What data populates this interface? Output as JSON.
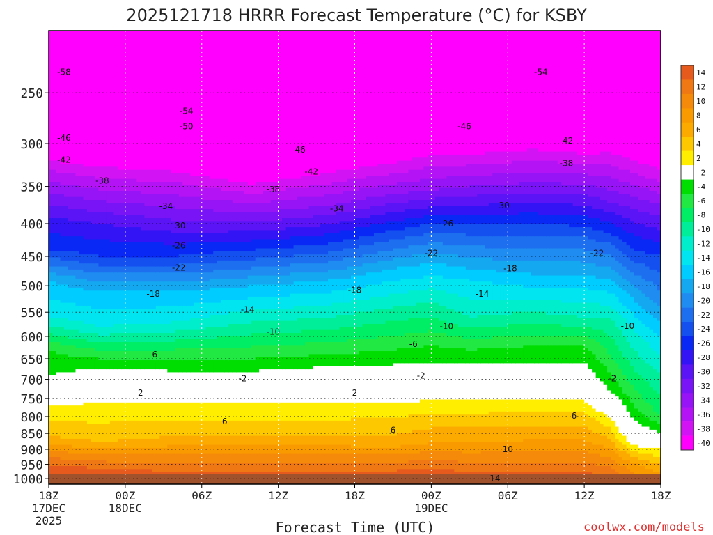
{
  "chart_data": {
    "type": "heatmap",
    "title": "2025121718 HRRR Forecast Temperature (°C) for KSBY",
    "xlabel": "Forecast Time (UTC)",
    "ylabel": "",
    "credit": "coolwx.com/models",
    "x_hours": [
      0,
      48
    ],
    "x_ticks": [
      {
        "hour": 0,
        "lines": [
          "18Z",
          "17DEC",
          "2025"
        ]
      },
      {
        "hour": 6,
        "lines": [
          "00Z",
          "18DEC"
        ]
      },
      {
        "hour": 12,
        "lines": [
          "06Z"
        ]
      },
      {
        "hour": 18,
        "lines": [
          "12Z"
        ]
      },
      {
        "hour": 24,
        "lines": [
          "18Z"
        ]
      },
      {
        "hour": 30,
        "lines": [
          "00Z",
          "19DEC"
        ]
      },
      {
        "hour": 36,
        "lines": [
          "06Z"
        ]
      },
      {
        "hour": 42,
        "lines": [
          "12Z"
        ]
      },
      {
        "hour": 48,
        "lines": [
          "18Z"
        ]
      }
    ],
    "y_ticks": [
      250,
      300,
      350,
      400,
      450,
      500,
      550,
      600,
      650,
      700,
      750,
      800,
      850,
      900,
      950,
      1000
    ],
    "y_range_hpa": [
      1020,
      200
    ],
    "colorbar": {
      "labels": [
        "14",
        "12",
        "10",
        "8",
        "6",
        "4",
        "2",
        "-2",
        "-4",
        "-6",
        "-8",
        "-10",
        "-12",
        "-14",
        "-16",
        "-18",
        "-20",
        "-22",
        "-24",
        "-26",
        "-28",
        "-30",
        "-32",
        "-34",
        "-36",
        "-38",
        "-40"
      ],
      "colors": [
        "#e65a1e",
        "#f07814",
        "#f58a0a",
        "#f99a00",
        "#fcaa00",
        "#fdc800",
        "#ffee00",
        "#ffffff",
        "#00dd00",
        "#22e844",
        "#00ee66",
        "#00ee99",
        "#00eecc",
        "#00e5f0",
        "#00ccff",
        "#14a8f0",
        "#1e8cf0",
        "#1e6ef0",
        "#1450f0",
        "#0a28f5",
        "#3214f5",
        "#5a14f5",
        "#7814f5",
        "#9614f5",
        "#b414f5",
        "#d214f5",
        "#ff00ff"
      ]
    },
    "profile": [
      {
        "hour": 0,
        "iso": [
          [
            1010,
            18
          ],
          [
            950,
            14
          ],
          [
            860,
            6
          ],
          [
            770,
            2
          ],
          [
            690,
            -4
          ],
          [
            630,
            -6
          ],
          [
            560,
            -14
          ],
          [
            490,
            -18
          ],
          [
            440,
            -26
          ],
          [
            390,
            -30
          ],
          [
            330,
            -38
          ],
          [
            290,
            -46
          ],
          [
            250,
            -56
          ],
          [
            220,
            -58
          ]
        ]
      },
      {
        "hour": 4,
        "iso": [
          [
            1010,
            17
          ],
          [
            950,
            13
          ],
          [
            880,
            6
          ],
          [
            760,
            2
          ],
          [
            700,
            -2
          ],
          [
            650,
            -6
          ],
          [
            580,
            -14
          ],
          [
            510,
            -18
          ],
          [
            450,
            -26
          ],
          [
            400,
            -30
          ],
          [
            340,
            -38
          ],
          [
            290,
            -46
          ],
          [
            250,
            -54
          ],
          [
            210,
            -58
          ]
        ]
      },
      {
        "hour": 10,
        "iso": [
          [
            1010,
            17
          ],
          [
            950,
            12
          ],
          [
            860,
            6
          ],
          [
            760,
            2
          ],
          [
            710,
            -2
          ],
          [
            650,
            -6
          ],
          [
            570,
            -14
          ],
          [
            510,
            -18
          ],
          [
            450,
            -26
          ],
          [
            395,
            -32
          ],
          [
            345,
            -38
          ],
          [
            295,
            -46
          ],
          [
            255,
            -54
          ],
          [
            210,
            -58
          ]
        ]
      },
      {
        "hour": 16,
        "iso": [
          [
            1010,
            16
          ],
          [
            950,
            12
          ],
          [
            860,
            6
          ],
          [
            760,
            2
          ],
          [
            710,
            -2
          ],
          [
            650,
            -6
          ],
          [
            570,
            -12
          ],
          [
            500,
            -18
          ],
          [
            440,
            -26
          ],
          [
            385,
            -34
          ],
          [
            335,
            -42
          ],
          [
            285,
            -50
          ],
          [
            245,
            -54
          ],
          [
            210,
            -58
          ]
        ]
      },
      {
        "hour": 22,
        "iso": [
          [
            1010,
            16
          ],
          [
            950,
            12
          ],
          [
            860,
            6
          ],
          [
            760,
            2
          ],
          [
            700,
            -2
          ],
          [
            640,
            -6
          ],
          [
            560,
            -12
          ],
          [
            490,
            -18
          ],
          [
            430,
            -26
          ],
          [
            375,
            -34
          ],
          [
            320,
            -42
          ],
          [
            270,
            -50
          ],
          [
            240,
            -54
          ],
          [
            210,
            -58
          ]
        ]
      },
      {
        "hour": 27,
        "iso": [
          [
            1010,
            17
          ],
          [
            960,
            13
          ],
          [
            880,
            7
          ],
          [
            760,
            2
          ],
          [
            700,
            -2
          ],
          [
            630,
            -6
          ],
          [
            540,
            -12
          ],
          [
            470,
            -18
          ],
          [
            410,
            -26
          ],
          [
            360,
            -34
          ],
          [
            310,
            -42
          ],
          [
            265,
            -50
          ],
          [
            235,
            -54
          ],
          [
            210,
            -58
          ]
        ]
      },
      {
        "hour": 30,
        "iso": [
          [
            1010,
            16
          ],
          [
            960,
            14
          ],
          [
            880,
            8
          ],
          [
            770,
            3
          ],
          [
            700,
            -2
          ],
          [
            620,
            -6
          ],
          [
            530,
            -12
          ],
          [
            460,
            -18
          ],
          [
            400,
            -26
          ],
          [
            355,
            -34
          ],
          [
            300,
            -42
          ],
          [
            260,
            -48
          ],
          [
            235,
            -54
          ],
          [
            210,
            -58
          ]
        ]
      },
      {
        "hour": 33,
        "iso": [
          [
            1010,
            16
          ],
          [
            960,
            13
          ],
          [
            880,
            8
          ],
          [
            770,
            3
          ],
          [
            700,
            -2
          ],
          [
            630,
            -6
          ],
          [
            560,
            -12
          ],
          [
            490,
            -16
          ],
          [
            400,
            -26
          ],
          [
            350,
            -34
          ],
          [
            300,
            -42
          ],
          [
            260,
            -48
          ],
          [
            235,
            -54
          ],
          [
            210,
            -58
          ]
        ]
      },
      {
        "hour": 38,
        "iso": [
          [
            1010,
            16
          ],
          [
            960,
            13
          ],
          [
            870,
            8
          ],
          [
            770,
            3
          ],
          [
            700,
            -2
          ],
          [
            620,
            -6
          ],
          [
            550,
            -12
          ],
          [
            480,
            -18
          ],
          [
            400,
            -26
          ],
          [
            345,
            -34
          ],
          [
            295,
            -42
          ],
          [
            255,
            -48
          ],
          [
            230,
            -54
          ],
          [
            210,
            -58
          ]
        ]
      },
      {
        "hour": 42,
        "iso": [
          [
            1010,
            16
          ],
          [
            960,
            13
          ],
          [
            870,
            8
          ],
          [
            770,
            3
          ],
          [
            700,
            -2
          ],
          [
            620,
            -6
          ],
          [
            560,
            -12
          ],
          [
            480,
            -18
          ],
          [
            420,
            -24
          ],
          [
            360,
            -32
          ],
          [
            300,
            -42
          ],
          [
            255,
            -48
          ],
          [
            230,
            -54
          ],
          [
            210,
            -58
          ]
        ]
      },
      {
        "hour": 44,
        "iso": [
          [
            1010,
            14
          ],
          [
            960,
            12
          ],
          [
            900,
            8
          ],
          [
            800,
            2
          ],
          [
            730,
            -4
          ],
          [
            640,
            -8
          ],
          [
            560,
            -12
          ],
          [
            490,
            -18
          ],
          [
            430,
            -24
          ],
          [
            370,
            -32
          ],
          [
            310,
            -40
          ],
          [
            265,
            -46
          ],
          [
            235,
            -52
          ],
          [
            210,
            -58
          ]
        ]
      },
      {
        "hour": 46,
        "iso": [
          [
            1010,
            11
          ],
          [
            960,
            9
          ],
          [
            900,
            3
          ],
          [
            850,
            -2
          ],
          [
            780,
            -6
          ],
          [
            680,
            -10
          ],
          [
            590,
            -14
          ],
          [
            500,
            -20
          ],
          [
            440,
            -26
          ],
          [
            380,
            -32
          ],
          [
            320,
            -40
          ],
          [
            270,
            -46
          ],
          [
            235,
            -52
          ],
          [
            210,
            -58
          ]
        ]
      },
      {
        "hour": 48,
        "iso": [
          [
            1010,
            10
          ],
          [
            950,
            6
          ],
          [
            900,
            2
          ],
          [
            870,
            -2
          ],
          [
            800,
            -8
          ],
          [
            690,
            -12
          ],
          [
            600,
            -16
          ],
          [
            510,
            -22
          ],
          [
            450,
            -26
          ],
          [
            390,
            -32
          ],
          [
            330,
            -40
          ],
          [
            280,
            -46
          ],
          [
            240,
            -52
          ],
          [
            210,
            -58
          ]
        ]
      }
    ],
    "contour_labels": [
      {
        "text": "-58",
        "hour": 1.2,
        "p": 232
      },
      {
        "text": "-54",
        "hour": 10.8,
        "p": 267
      },
      {
        "text": "-54",
        "hour": 38.6,
        "p": 232
      },
      {
        "text": "-50",
        "hour": 10.8,
        "p": 282
      },
      {
        "text": "-46",
        "hour": 1.2,
        "p": 294
      },
      {
        "text": "-46",
        "hour": 19.6,
        "p": 307
      },
      {
        "text": "-46",
        "hour": 32.6,
        "p": 282
      },
      {
        "text": "-42",
        "hour": 1.2,
        "p": 318
      },
      {
        "text": "-42",
        "hour": 20.6,
        "p": 332
      },
      {
        "text": "-42",
        "hour": 40.6,
        "p": 297
      },
      {
        "text": "-38",
        "hour": 4.2,
        "p": 343
      },
      {
        "text": "-38",
        "hour": 17.6,
        "p": 354
      },
      {
        "text": "-38",
        "hour": 40.6,
        "p": 322
      },
      {
        "text": "-34",
        "hour": 9.2,
        "p": 376
      },
      {
        "text": "-34",
        "hour": 22.6,
        "p": 379
      },
      {
        "text": "-30",
        "hour": 10.2,
        "p": 403
      },
      {
        "text": "-30",
        "hour": 35.6,
        "p": 375
      },
      {
        "text": "-26",
        "hour": 10.2,
        "p": 433
      },
      {
        "text": "-26",
        "hour": 31.2,
        "p": 400
      },
      {
        "text": "-22",
        "hour": 10.2,
        "p": 469
      },
      {
        "text": "-22",
        "hour": 30.0,
        "p": 445
      },
      {
        "text": "-22",
        "hour": 43.0,
        "p": 445
      },
      {
        "text": "-18",
        "hour": 8.2,
        "p": 515
      },
      {
        "text": "-18",
        "hour": 24.0,
        "p": 508
      },
      {
        "text": "-18",
        "hour": 36.2,
        "p": 470
      },
      {
        "text": "-14",
        "hour": 15.6,
        "p": 545
      },
      {
        "text": "-14",
        "hour": 34.0,
        "p": 515
      },
      {
        "text": "-10",
        "hour": 17.6,
        "p": 590
      },
      {
        "text": "-10",
        "hour": 31.2,
        "p": 579
      },
      {
        "text": "-10",
        "hour": 45.4,
        "p": 578
      },
      {
        "text": "-6",
        "hour": 8.2,
        "p": 640
      },
      {
        "text": "-6",
        "hour": 28.6,
        "p": 617
      },
      {
        "text": "-2",
        "hour": 15.2,
        "p": 698
      },
      {
        "text": "-2",
        "hour": 29.2,
        "p": 691
      },
      {
        "text": "-2",
        "hour": 44.2,
        "p": 698
      },
      {
        "text": "2",
        "hour": 7.2,
        "p": 735
      },
      {
        "text": "2",
        "hour": 24.0,
        "p": 735
      },
      {
        "text": "6",
        "hour": 13.8,
        "p": 814
      },
      {
        "text": "6",
        "hour": 27.0,
        "p": 840
      },
      {
        "text": "6",
        "hour": 41.2,
        "p": 798
      },
      {
        "text": "10",
        "hour": 36.0,
        "p": 900
      },
      {
        "text": "14",
        "hour": 35.0,
        "p": 1000
      }
    ]
  }
}
